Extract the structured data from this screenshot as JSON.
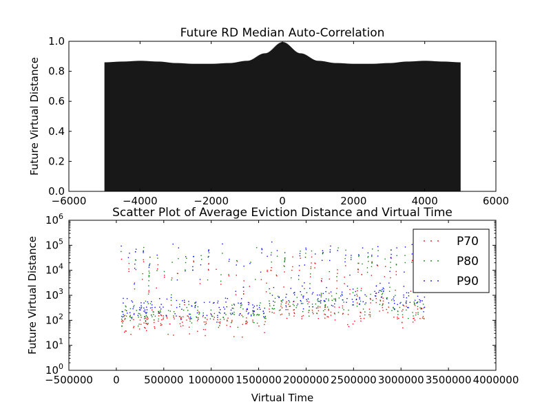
{
  "chart_data": [
    {
      "type": "bar",
      "title": "Future RD Median Auto-Correlation",
      "ylabel": "Future Virtual Distance",
      "xlabel": "",
      "xlim": [
        -6000,
        6000
      ],
      "ylim": [
        0,
        1.0
      ],
      "xticks": [
        "−6000",
        "−4000",
        "−2000",
        "0",
        "2000",
        "4000",
        "6000"
      ],
      "xtick_values": [
        -6000,
        -4000,
        -2000,
        0,
        2000,
        4000,
        6000
      ],
      "yticks": [
        "0.0",
        "0.2",
        "0.4",
        "0.6",
        "0.8",
        "1.0"
      ],
      "ytick_values": [
        0,
        0.2,
        0.4,
        0.6,
        0.8,
        1.0
      ],
      "lag_range": [
        -5000,
        5000
      ],
      "x": [
        -5000,
        -4500,
        -4000,
        -3500,
        -3000,
        -2500,
        -2000,
        -1500,
        -1000,
        -500,
        0,
        500,
        1000,
        1500,
        2000,
        2500,
        3000,
        3500,
        4000,
        4500,
        5000
      ],
      "values": [
        0.86,
        0.865,
        0.87,
        0.865,
        0.855,
        0.85,
        0.85,
        0.855,
        0.87,
        0.92,
        0.995,
        0.92,
        0.87,
        0.855,
        0.85,
        0.85,
        0.855,
        0.865,
        0.87,
        0.865,
        0.86
      ],
      "color": "#000000"
    },
    {
      "type": "scatter",
      "title": "Scatter Plot of Average Eviction Distance and Virtual Time",
      "xlabel": "Virtual Time",
      "ylabel": "Future Virtual Distance",
      "xlim": [
        -500000,
        4000000
      ],
      "ylim": [
        1,
        1000000
      ],
      "yscale": "log",
      "xticks": [
        "−500000",
        "0",
        "500000",
        "1000000",
        "1500000",
        "2000000",
        "2500000",
        "3000000",
        "3500000",
        "4000000"
      ],
      "xtick_values": [
        -500000,
        0,
        500000,
        1000000,
        1500000,
        2000000,
        2500000,
        3000000,
        3500000,
        4000000
      ],
      "ytick_exponents": [
        0,
        1,
        2,
        3,
        4,
        5,
        6
      ],
      "legend_position": "upper-right",
      "x_range": [
        50000,
        3250000
      ],
      "series": [
        {
          "name": "P70",
          "color": "#ff0000",
          "base": 80,
          "peak": 30000
        },
        {
          "name": "P80",
          "color": "#008000",
          "base": 160,
          "peak": 60000
        },
        {
          "name": "P90",
          "color": "#0000ff",
          "base": 300,
          "peak": 100000
        }
      ]
    }
  ]
}
